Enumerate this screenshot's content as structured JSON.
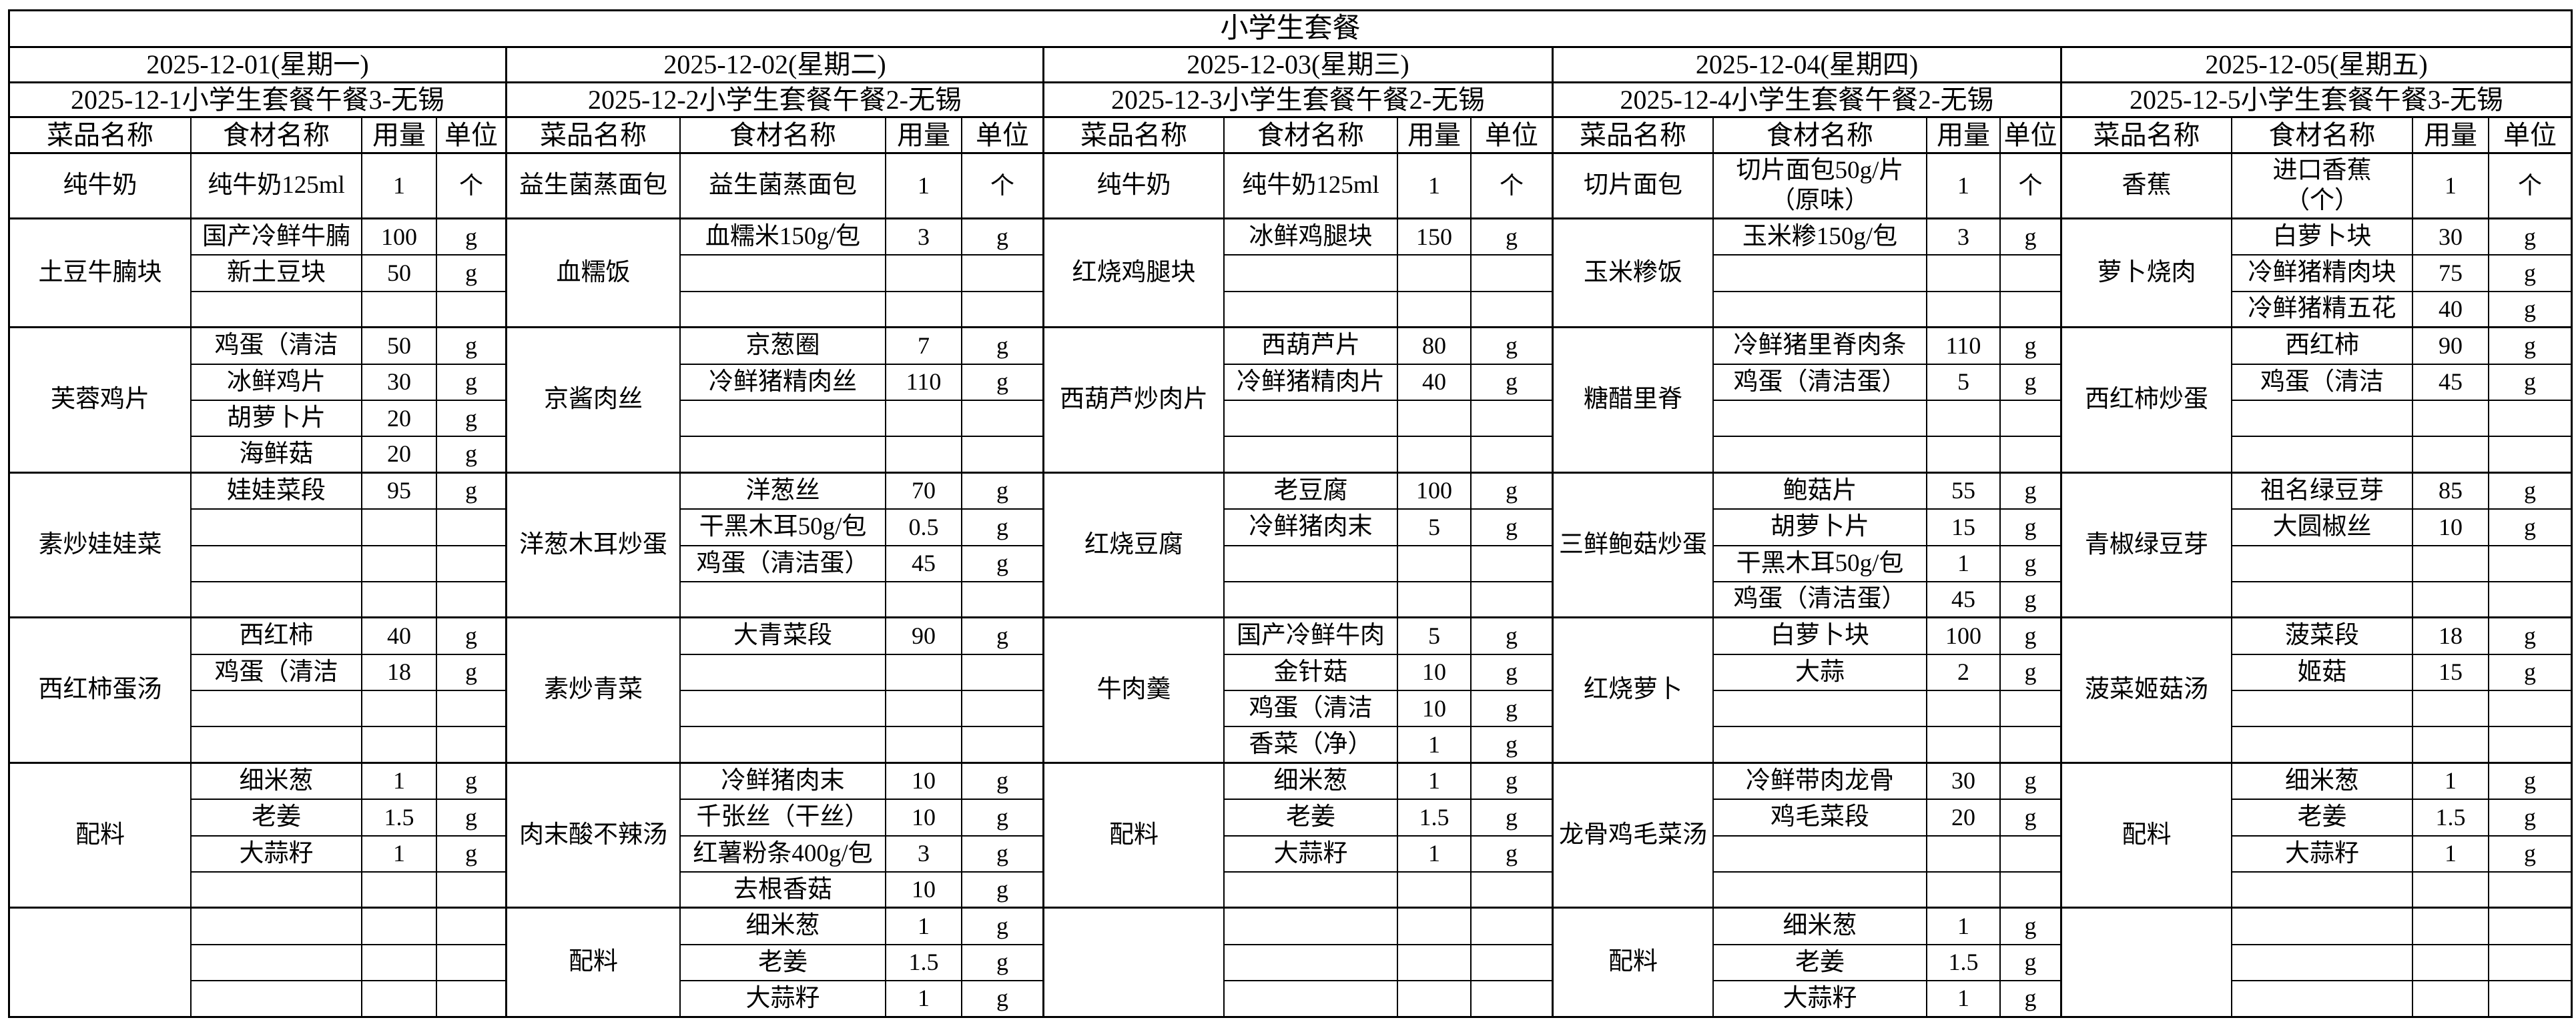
{
  "title": "小学生套餐",
  "column_headers": [
    "菜品名称",
    "食材名称",
    "用量",
    "单位"
  ],
  "days": [
    {
      "date": "2025-12-01(星期一)",
      "meal": "2025-12-1小学生套餐午餐3-无锡",
      "blocks": [
        {
          "dish": "纯牛奶",
          "rows": [
            [
              "纯牛奶125ml",
              "1",
              "个"
            ]
          ]
        },
        {
          "dish": "土豆牛腩块",
          "rows": [
            [
              "国产冷鲜牛腩",
              "100",
              "g"
            ],
            [
              "新土豆块",
              "50",
              "g"
            ],
            [
              "",
              "",
              ""
            ]
          ]
        },
        {
          "dish": "芙蓉鸡片",
          "rows": [
            [
              "鸡蛋（清洁",
              "50",
              "g"
            ],
            [
              "冰鲜鸡片",
              "30",
              "g"
            ],
            [
              "胡萝卜片",
              "20",
              "g"
            ],
            [
              "海鲜菇",
              "20",
              "g"
            ]
          ]
        },
        {
          "dish": "素炒娃娃菜",
          "rows": [
            [
              "娃娃菜段",
              "95",
              "g"
            ],
            [
              "",
              "",
              ""
            ],
            [
              "",
              "",
              ""
            ],
            [
              "",
              "",
              ""
            ]
          ]
        },
        {
          "dish": "西红柿蛋汤",
          "rows": [
            [
              "西红柿",
              "40",
              "g"
            ],
            [
              "鸡蛋（清洁",
              "18",
              "g"
            ],
            [
              "",
              "",
              ""
            ],
            [
              "",
              "",
              ""
            ]
          ]
        },
        {
          "dish": "配料",
          "rows": [
            [
              "细米葱",
              "1",
              "g"
            ],
            [
              "老姜",
              "1.5",
              "g"
            ],
            [
              "大蒜籽",
              "1",
              "g"
            ],
            [
              "",
              "",
              ""
            ]
          ]
        },
        {
          "dish": "",
          "rows": [
            [
              "",
              "",
              ""
            ],
            [
              "",
              "",
              ""
            ],
            [
              "",
              "",
              ""
            ]
          ]
        }
      ]
    },
    {
      "date": "2025-12-02(星期二)",
      "meal": "2025-12-2小学生套餐午餐2-无锡",
      "blocks": [
        {
          "dish": "益生菌蒸面包",
          "rows": [
            [
              "益生菌蒸面包",
              "1",
              "个"
            ]
          ]
        },
        {
          "dish": "血糯饭",
          "rows": [
            [
              "血糯米150g/包",
              "3",
              "g"
            ],
            [
              "",
              "",
              ""
            ],
            [
              "",
              "",
              ""
            ]
          ]
        },
        {
          "dish": "京酱肉丝",
          "rows": [
            [
              "京葱圈",
              "7",
              "g"
            ],
            [
              "冷鲜猪精肉丝",
              "110",
              "g"
            ],
            [
              "",
              "",
              ""
            ],
            [
              "",
              "",
              ""
            ]
          ]
        },
        {
          "dish": "洋葱木耳炒蛋",
          "rows": [
            [
              "洋葱丝",
              "70",
              "g"
            ],
            [
              "干黑木耳50g/包",
              "0.5",
              "g"
            ],
            [
              "鸡蛋（清洁蛋）",
              "45",
              "g"
            ],
            [
              "",
              "",
              ""
            ]
          ]
        },
        {
          "dish": "素炒青菜",
          "rows": [
            [
              "大青菜段",
              "90",
              "g"
            ],
            [
              "",
              "",
              ""
            ],
            [
              "",
              "",
              ""
            ],
            [
              "",
              "",
              ""
            ]
          ]
        },
        {
          "dish": "肉末酸不辣汤",
          "rows": [
            [
              "冷鲜猪肉末",
              "10",
              "g"
            ],
            [
              "千张丝（干丝）",
              "10",
              "g"
            ],
            [
              "红薯粉条400g/包",
              "3",
              "g"
            ],
            [
              "去根香菇",
              "10",
              "g"
            ]
          ]
        },
        {
          "dish": "配料",
          "rows": [
            [
              "细米葱",
              "1",
              "g"
            ],
            [
              "老姜",
              "1.5",
              "g"
            ],
            [
              "大蒜籽",
              "1",
              "g"
            ]
          ]
        }
      ]
    },
    {
      "date": "2025-12-03(星期三)",
      "meal": "2025-12-3小学生套餐午餐2-无锡",
      "blocks": [
        {
          "dish": "纯牛奶",
          "rows": [
            [
              "纯牛奶125ml",
              "1",
              "个"
            ]
          ]
        },
        {
          "dish": "红烧鸡腿块",
          "rows": [
            [
              "冰鲜鸡腿块",
              "150",
              "g"
            ],
            [
              "",
              "",
              ""
            ],
            [
              "",
              "",
              ""
            ]
          ]
        },
        {
          "dish": "西葫芦炒肉片",
          "rows": [
            [
              "西葫芦片",
              "80",
              "g"
            ],
            [
              "冷鲜猪精肉片",
              "40",
              "g"
            ],
            [
              "",
              "",
              ""
            ],
            [
              "",
              "",
              ""
            ]
          ]
        },
        {
          "dish": "红烧豆腐",
          "rows": [
            [
              "老豆腐",
              "100",
              "g"
            ],
            [
              "冷鲜猪肉末",
              "5",
              "g"
            ],
            [
              "",
              "",
              ""
            ],
            [
              "",
              "",
              ""
            ]
          ]
        },
        {
          "dish": "牛肉羹",
          "rows": [
            [
              "国产冷鲜牛肉",
              "5",
              "g"
            ],
            [
              "金针菇",
              "10",
              "g"
            ],
            [
              "鸡蛋（清洁",
              "10",
              "g"
            ],
            [
              "香菜（净）",
              "1",
              "g"
            ]
          ]
        },
        {
          "dish": "配料",
          "rows": [
            [
              "细米葱",
              "1",
              "g"
            ],
            [
              "老姜",
              "1.5",
              "g"
            ],
            [
              "大蒜籽",
              "1",
              "g"
            ],
            [
              "",
              "",
              ""
            ]
          ]
        },
        {
          "dish": "",
          "rows": [
            [
              "",
              "",
              ""
            ],
            [
              "",
              "",
              ""
            ],
            [
              "",
              "",
              ""
            ]
          ]
        }
      ]
    },
    {
      "date": "2025-12-04(星期四)",
      "meal": "2025-12-4小学生套餐午餐2-无锡",
      "blocks": [
        {
          "dish": "切片面包",
          "rows": [
            [
              "切片面包50g/片\n（原味）",
              "1",
              "个"
            ]
          ]
        },
        {
          "dish": "玉米糁饭",
          "rows": [
            [
              "玉米糁150g/包",
              "3",
              "g"
            ],
            [
              "",
              "",
              ""
            ],
            [
              "",
              "",
              ""
            ]
          ]
        },
        {
          "dish": "糖醋里脊",
          "rows": [
            [
              "冷鲜猪里脊肉条",
              "110",
              "g"
            ],
            [
              "鸡蛋（清洁蛋）",
              "5",
              "g"
            ],
            [
              "",
              "",
              ""
            ],
            [
              "",
              "",
              ""
            ]
          ]
        },
        {
          "dish": "三鲜鲍菇炒蛋",
          "rows": [
            [
              "鲍菇片",
              "55",
              "g"
            ],
            [
              "胡萝卜片",
              "15",
              "g"
            ],
            [
              "干黑木耳50g/包",
              "1",
              "g"
            ],
            [
              "鸡蛋（清洁蛋）",
              "45",
              "g"
            ]
          ]
        },
        {
          "dish": "红烧萝卜",
          "rows": [
            [
              "白萝卜块",
              "100",
              "g"
            ],
            [
              "大蒜",
              "2",
              "g"
            ],
            [
              "",
              "",
              ""
            ],
            [
              "",
              "",
              ""
            ]
          ]
        },
        {
          "dish": "龙骨鸡毛菜汤",
          "rows": [
            [
              "冷鲜带肉龙骨",
              "30",
              "g"
            ],
            [
              "鸡毛菜段",
              "20",
              "g"
            ],
            [
              "",
              "",
              ""
            ],
            [
              "",
              "",
              ""
            ]
          ]
        },
        {
          "dish": "配料",
          "rows": [
            [
              "细米葱",
              "1",
              "g"
            ],
            [
              "老姜",
              "1.5",
              "g"
            ],
            [
              "大蒜籽",
              "1",
              "g"
            ]
          ]
        }
      ]
    },
    {
      "date": "2025-12-05(星期五)",
      "meal": "2025-12-5小学生套餐午餐3-无锡",
      "blocks": [
        {
          "dish": "香蕉",
          "rows": [
            [
              "进口香蕉\n（个）",
              "1",
              "个"
            ]
          ]
        },
        {
          "dish": "萝卜烧肉",
          "rows": [
            [
              "白萝卜块",
              "30",
              "g"
            ],
            [
              "冷鲜猪精肉块",
              "75",
              "g"
            ],
            [
              "冷鲜猪精五花",
              "40",
              "g"
            ]
          ]
        },
        {
          "dish": "西红柿炒蛋",
          "rows": [
            [
              "西红柿",
              "90",
              "g"
            ],
            [
              "鸡蛋（清洁",
              "45",
              "g"
            ],
            [
              "",
              "",
              ""
            ],
            [
              "",
              "",
              ""
            ]
          ]
        },
        {
          "dish": "青椒绿豆芽",
          "rows": [
            [
              "祖名绿豆芽",
              "85",
              "g"
            ],
            [
              "大圆椒丝",
              "10",
              "g"
            ],
            [
              "",
              "",
              ""
            ],
            [
              "",
              "",
              ""
            ]
          ]
        },
        {
          "dish": "菠菜姬菇汤",
          "rows": [
            [
              "菠菜段",
              "18",
              "g"
            ],
            [
              "姬菇",
              "15",
              "g"
            ],
            [
              "",
              "",
              ""
            ],
            [
              "",
              "",
              ""
            ]
          ]
        },
        {
          "dish": "配料",
          "rows": [
            [
              "细米葱",
              "1",
              "g"
            ],
            [
              "老姜",
              "1.5",
              "g"
            ],
            [
              "大蒜籽",
              "1",
              "g"
            ],
            [
              "",
              "",
              ""
            ]
          ]
        },
        {
          "dish": "",
          "rows": [
            [
              "",
              "",
              ""
            ],
            [
              "",
              "",
              ""
            ],
            [
              "",
              "",
              ""
            ]
          ]
        }
      ]
    }
  ]
}
